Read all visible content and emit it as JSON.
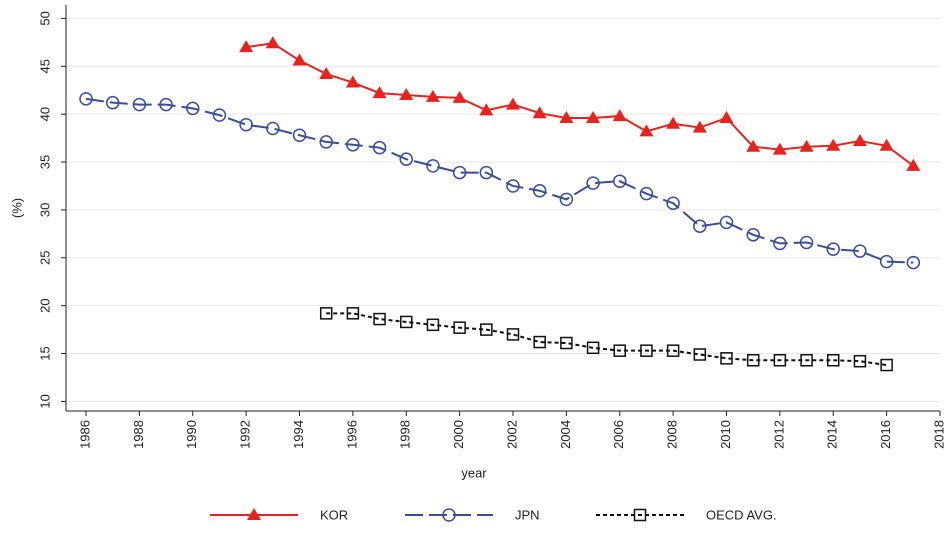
{
  "chart_data": {
    "type": "line",
    "xlabel": "year",
    "ylabel": "(%)",
    "x": [
      1986,
      1987,
      1988,
      1989,
      1990,
      1991,
      1992,
      1993,
      1994,
      1995,
      1996,
      1997,
      1998,
      1999,
      2000,
      2001,
      2002,
      2003,
      2004,
      2005,
      2006,
      2007,
      2008,
      2009,
      2010,
      2011,
      2012,
      2013,
      2014,
      2015,
      2016,
      2017
    ],
    "series": [
      {
        "name": "KOR",
        "color": "#e8231f",
        "marker": "triangle",
        "dash": "solid",
        "values": [
          null,
          null,
          null,
          null,
          null,
          null,
          47.0,
          47.4,
          45.6,
          44.2,
          43.3,
          42.2,
          42.0,
          41.8,
          41.7,
          40.4,
          41.0,
          40.1,
          39.6,
          39.6,
          39.8,
          38.2,
          39.0,
          38.6,
          39.6,
          36.6,
          36.3,
          36.6,
          36.7,
          37.2,
          36.7,
          34.6
        ]
      },
      {
        "name": "JPN",
        "color": "#3a4c9c",
        "marker": "circle",
        "dash": "long",
        "values": [
          41.6,
          41.2,
          41.0,
          41.0,
          40.6,
          39.9,
          38.9,
          38.5,
          37.8,
          37.1,
          36.8,
          36.5,
          35.3,
          34.6,
          33.9,
          33.9,
          32.5,
          32.0,
          31.1,
          32.8,
          33.0,
          31.7,
          30.7,
          28.3,
          28.7,
          27.4,
          26.5,
          26.6,
          25.9,
          25.7,
          24.6,
          24.5
        ]
      },
      {
        "name": "OECD AVG.",
        "color": "#111111",
        "marker": "square",
        "dash": "short",
        "values": [
          null,
          null,
          null,
          null,
          null,
          null,
          null,
          null,
          null,
          19.2,
          19.2,
          18.6,
          18.3,
          18.0,
          17.7,
          17.5,
          17.0,
          16.2,
          16.1,
          15.6,
          15.3,
          15.3,
          15.3,
          14.9,
          14.5,
          14.3,
          14.3,
          14.3,
          14.3,
          14.2,
          13.8,
          null
        ]
      }
    ],
    "xlim": [
      1985.25,
      2018
    ],
    "xticks": [
      1986,
      1988,
      1990,
      1992,
      1994,
      1996,
      1998,
      2000,
      2002,
      2004,
      2006,
      2008,
      2010,
      2012,
      2014,
      2016,
      2018
    ],
    "ylim": [
      9,
      51.4
    ],
    "yticks": [
      10,
      15,
      20,
      25,
      30,
      35,
      40,
      45,
      50
    ],
    "grid": true
  }
}
